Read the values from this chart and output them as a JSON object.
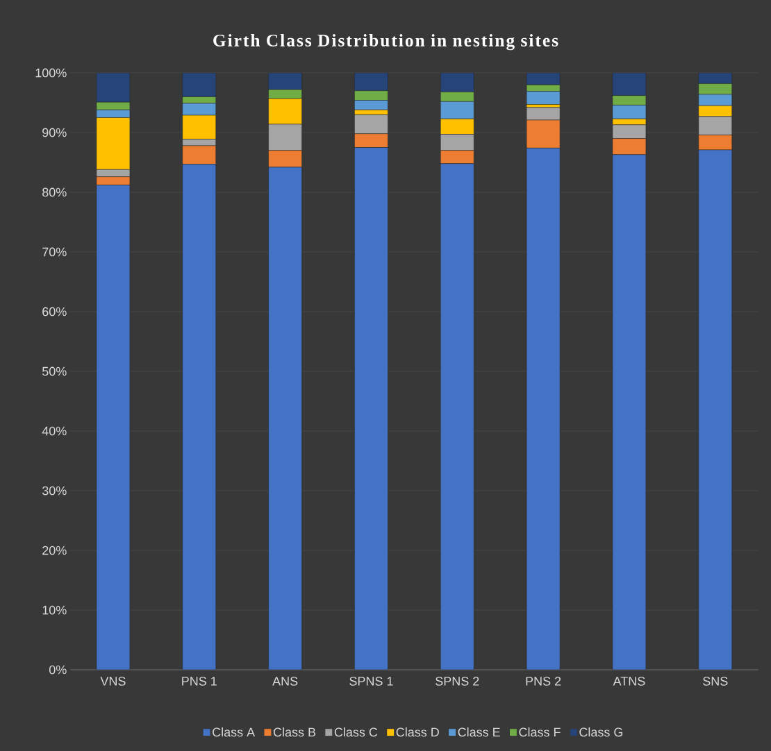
{
  "chart_data": {
    "type": "bar",
    "title": "Girth Class Distribution in nesting sites",
    "stacked": true,
    "grid": "y",
    "legend": "bottom",
    "categories": [
      "VNS",
      "PNS 1",
      "ANS",
      "SPNS 1",
      "SPNS 2",
      "PNS 2",
      "ATNS",
      "SNS"
    ],
    "ylim": [
      0,
      100
    ],
    "yticks": [
      {
        "value": 0,
        "label": "0%"
      },
      {
        "value": 10,
        "label": "10%"
      },
      {
        "value": 20,
        "label": "20%"
      },
      {
        "value": 30,
        "label": "30%"
      },
      {
        "value": 40,
        "label": "40%"
      },
      {
        "value": 50,
        "label": "50%"
      },
      {
        "value": 60,
        "label": "60%"
      },
      {
        "value": 70,
        "label": "70%"
      },
      {
        "value": 80,
        "label": "80%"
      },
      {
        "value": 90,
        "label": "90%"
      },
      {
        "value": 100,
        "label": "100%"
      }
    ],
    "series": [
      {
        "name": "Class A",
        "color": "#4472c4",
        "values": [
          81.2,
          84.7,
          84.2,
          87.5,
          84.8,
          87.4,
          86.3,
          87.1
        ]
      },
      {
        "name": "Class B",
        "color": "#ed7d31",
        "values": [
          1.4,
          3.1,
          2.8,
          2.3,
          2.2,
          4.7,
          2.7,
          2.5
        ]
      },
      {
        "name": "Class C",
        "color": "#a5a5a5",
        "values": [
          1.2,
          1.1,
          4.4,
          3.2,
          2.7,
          2.1,
          2.3,
          3.1
        ]
      },
      {
        "name": "Class D",
        "color": "#ffc000",
        "values": [
          8.7,
          4.0,
          4.3,
          0.8,
          2.6,
          0.5,
          1.0,
          1.8
        ]
      },
      {
        "name": "Class E",
        "color": "#5b9bd5",
        "values": [
          1.3,
          2.0,
          0,
          1.6,
          2.9,
          2.2,
          2.3,
          1.9
        ]
      },
      {
        "name": "Class F",
        "color": "#70ad47",
        "values": [
          1.3,
          1.1,
          1.5,
          1.6,
          1.6,
          1.1,
          1.6,
          1.8
        ]
      },
      {
        "name": "Class G",
        "color": "#264478",
        "values": [
          4.9,
          4.0,
          2.8,
          3.0,
          3.2,
          2.0,
          3.8,
          1.8
        ]
      }
    ]
  }
}
